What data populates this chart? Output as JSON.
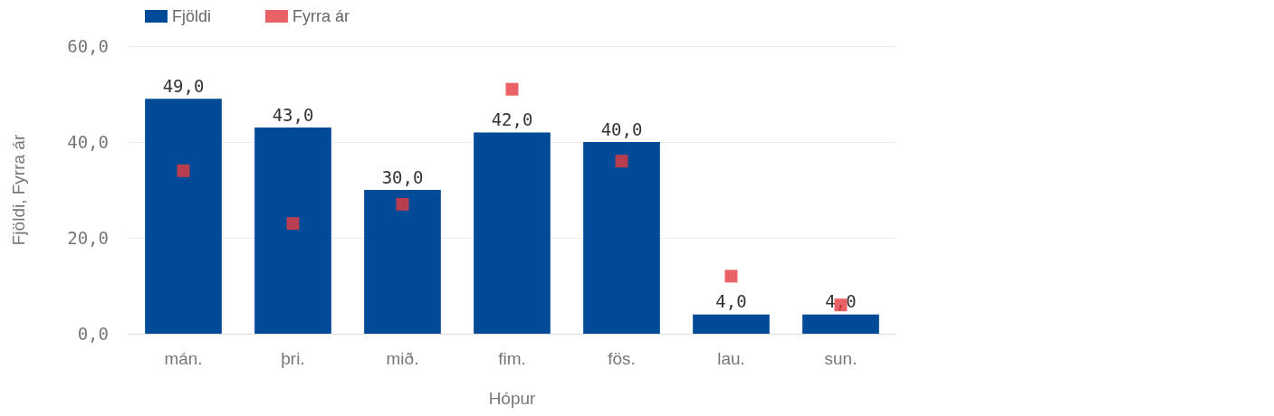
{
  "chart_data": {
    "type": "bar",
    "xlabel": "Hópur",
    "ylabel": "Fjöldi, Fyrra ár",
    "categories": [
      "mán.",
      "þri.",
      "mið.",
      "fim.",
      "fös.",
      "lau.",
      "sun."
    ],
    "series": [
      {
        "name": "Fjöldi",
        "color": "#004a98",
        "values": [
          49,
          43,
          30,
          42,
          40,
          4,
          4
        ],
        "value_labels": [
          "49,0",
          "43,0",
          "30,0",
          "42,0",
          "40,0",
          "4,0",
          "4,0"
        ]
      },
      {
        "name": "Fyrra ár",
        "type": "scatter",
        "marker": "square",
        "color": "#e33b3f",
        "values": [
          34,
          23,
          27,
          51,
          36,
          12,
          6
        ]
      }
    ],
    "ylim": [
      0,
      60
    ],
    "yticks": [
      {
        "value": 0,
        "label": "0,0"
      },
      {
        "value": 20,
        "label": "20,0"
      },
      {
        "value": 40,
        "label": "40,0"
      },
      {
        "value": 60,
        "label": "60,0"
      }
    ],
    "grid": "y",
    "legend": "top left"
  }
}
